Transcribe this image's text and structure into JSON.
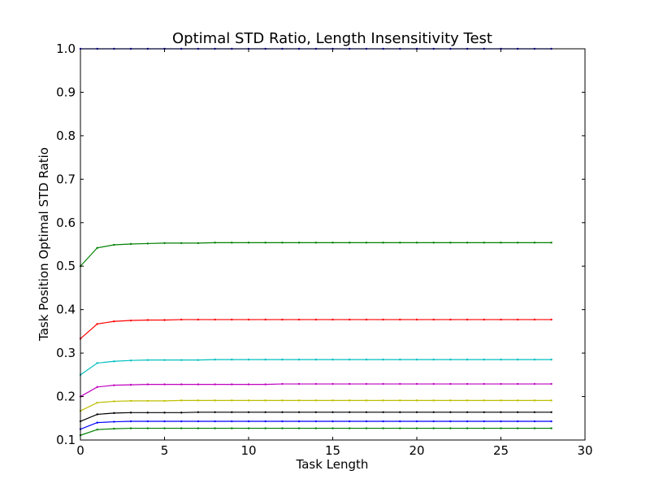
{
  "chart_data": {
    "type": "line",
    "title": "Optimal STD Ratio, Length Insensitivity Test",
    "xlabel": "Task Length",
    "ylabel": "Task Position Optimal STD Ratio",
    "xlim": [
      0,
      30
    ],
    "ylim": [
      0.1,
      1.0
    ],
    "xticks": [
      "0",
      "5",
      "10",
      "15",
      "20",
      "25",
      "30"
    ],
    "yticks": [
      "0.1",
      "0.2",
      "0.3",
      "0.4",
      "0.5",
      "0.6",
      "0.7",
      "0.8",
      "0.9",
      "1.0"
    ],
    "grid": false,
    "x": [
      0,
      1,
      2,
      3,
      4,
      5,
      6,
      7,
      8,
      9,
      10,
      11,
      12,
      13,
      14,
      15,
      16,
      17,
      18,
      19,
      20,
      21,
      22,
      23,
      24,
      25,
      26,
      27,
      28
    ],
    "series": [
      {
        "color": "#0000ff",
        "values": [
          1.0,
          1.0,
          1.0,
          1.0,
          1.0,
          1.0,
          1.0,
          1.0,
          1.0,
          1.0,
          1.0,
          1.0,
          1.0,
          1.0,
          1.0,
          1.0,
          1.0,
          1.0,
          1.0,
          1.0,
          1.0,
          1.0,
          1.0,
          1.0,
          1.0,
          1.0,
          1.0,
          1.0,
          1.0
        ]
      },
      {
        "color": "#008000",
        "values": [
          0.5,
          0.542,
          0.549,
          0.551,
          0.552,
          0.553,
          0.553,
          0.553,
          0.554,
          0.554,
          0.554,
          0.554,
          0.554,
          0.554,
          0.554,
          0.554,
          0.554,
          0.554,
          0.554,
          0.554,
          0.554,
          0.554,
          0.554,
          0.554,
          0.554,
          0.554,
          0.554,
          0.554,
          0.554
        ]
      },
      {
        "color": "#ff0000",
        "values": [
          0.333,
          0.367,
          0.373,
          0.375,
          0.376,
          0.376,
          0.377,
          0.377,
          0.377,
          0.377,
          0.377,
          0.377,
          0.377,
          0.377,
          0.377,
          0.377,
          0.377,
          0.377,
          0.377,
          0.377,
          0.377,
          0.377,
          0.377,
          0.377,
          0.377,
          0.377,
          0.377,
          0.377,
          0.377
        ]
      },
      {
        "color": "#00bfbf",
        "values": [
          0.25,
          0.277,
          0.281,
          0.283,
          0.284,
          0.284,
          0.284,
          0.284,
          0.285,
          0.285,
          0.285,
          0.285,
          0.285,
          0.285,
          0.285,
          0.285,
          0.285,
          0.285,
          0.285,
          0.285,
          0.285,
          0.285,
          0.285,
          0.285,
          0.285,
          0.285,
          0.285,
          0.285,
          0.285
        ]
      },
      {
        "color": "#bf00bf",
        "values": [
          0.2,
          0.222,
          0.226,
          0.227,
          0.228,
          0.228,
          0.228,
          0.228,
          0.228,
          0.228,
          0.228,
          0.228,
          0.229,
          0.229,
          0.229,
          0.229,
          0.229,
          0.229,
          0.229,
          0.229,
          0.229,
          0.229,
          0.229,
          0.229,
          0.229,
          0.229,
          0.229,
          0.229,
          0.229
        ]
      },
      {
        "color": "#bfbf00",
        "values": [
          0.167,
          0.186,
          0.189,
          0.19,
          0.19,
          0.19,
          0.191,
          0.191,
          0.191,
          0.191,
          0.191,
          0.191,
          0.191,
          0.191,
          0.191,
          0.191,
          0.191,
          0.191,
          0.191,
          0.191,
          0.191,
          0.191,
          0.191,
          0.191,
          0.191,
          0.191,
          0.191,
          0.191,
          0.191
        ]
      },
      {
        "color": "#000000",
        "values": [
          0.143,
          0.159,
          0.162,
          0.163,
          0.163,
          0.163,
          0.163,
          0.164,
          0.164,
          0.164,
          0.164,
          0.164,
          0.164,
          0.164,
          0.164,
          0.164,
          0.164,
          0.164,
          0.164,
          0.164,
          0.164,
          0.164,
          0.164,
          0.164,
          0.164,
          0.164,
          0.164,
          0.164,
          0.164
        ]
      },
      {
        "color": "#0000ff",
        "values": [
          0.125,
          0.14,
          0.142,
          0.143,
          0.143,
          0.143,
          0.143,
          0.143,
          0.143,
          0.143,
          0.143,
          0.143,
          0.143,
          0.143,
          0.143,
          0.143,
          0.143,
          0.143,
          0.143,
          0.143,
          0.143,
          0.143,
          0.143,
          0.143,
          0.143,
          0.143,
          0.143,
          0.143,
          0.143
        ]
      },
      {
        "color": "#008000",
        "values": [
          0.111,
          0.124,
          0.126,
          0.127,
          0.127,
          0.127,
          0.127,
          0.127,
          0.127,
          0.127,
          0.127,
          0.127,
          0.127,
          0.127,
          0.127,
          0.127,
          0.127,
          0.127,
          0.127,
          0.127,
          0.127,
          0.127,
          0.127,
          0.127,
          0.127,
          0.127,
          0.127,
          0.127,
          0.127
        ]
      }
    ]
  }
}
